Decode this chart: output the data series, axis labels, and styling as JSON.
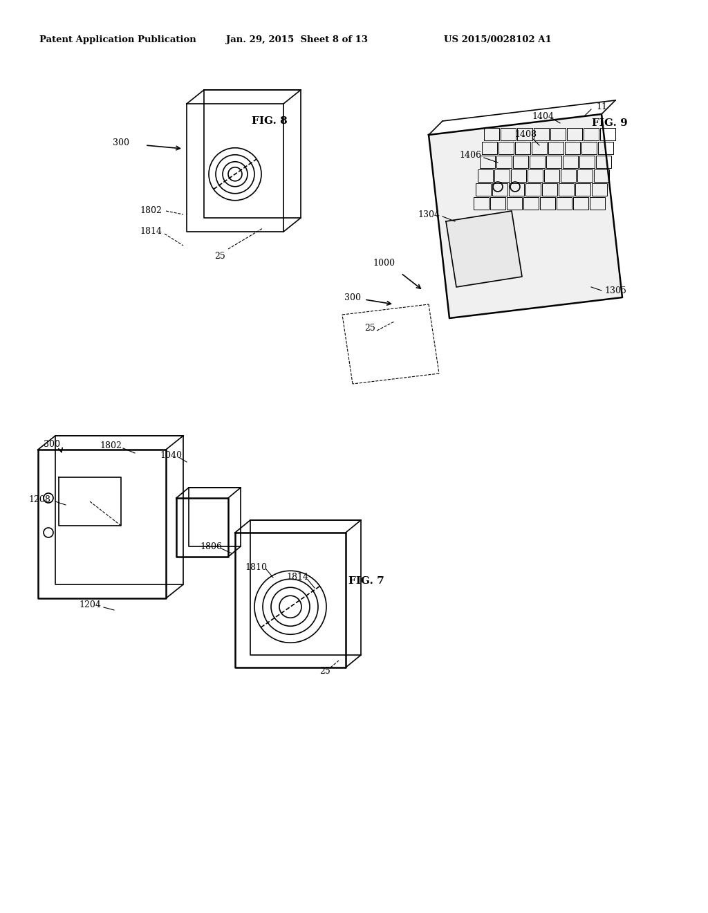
{
  "background_color": "#ffffff",
  "header_text": "Patent Application Publication",
  "header_date": "Jan. 29, 2015  Sheet 8 of 13",
  "header_patent": "US 2015/0028102 A1",
  "fig8_label": "FIG. 8",
  "fig9_label": "FIG. 9",
  "fig7_label": "FIG. 7",
  "labels": {
    "300_top": "300",
    "1802_top": "1802",
    "1814_top": "1814",
    "25_top": "25",
    "11": "11",
    "1404": "1404",
    "1408": "1408",
    "1406": "1406",
    "1304": "1304",
    "1000": "1000",
    "300_right": "300",
    "25_right": "25",
    "1305": "1305",
    "300_bot": "300",
    "1802_bot": "1802",
    "1040": "1040",
    "1208": "1208",
    "1806": "1806",
    "1810": "1810",
    "1814_bot": "1814",
    "1204": "1204",
    "25_bot": "25"
  }
}
